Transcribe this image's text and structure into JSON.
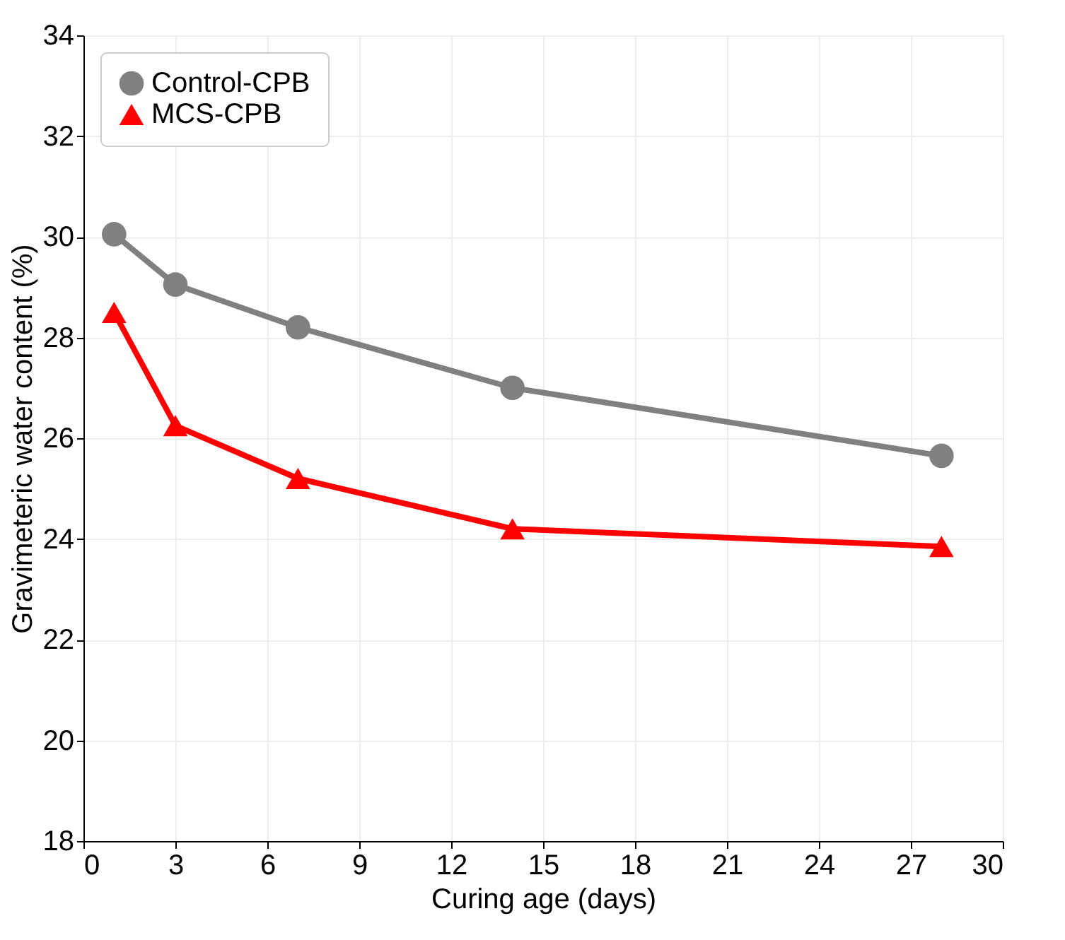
{
  "chart_data": {
    "type": "line",
    "xlabel": "Curing age (days)",
    "ylabel": "Gravimeteric water content (%)",
    "x": [
      1,
      3,
      7,
      14,
      28
    ],
    "series": [
      {
        "name": "Control-CPB",
        "color": "#808080",
        "marker": "circle",
        "values": [
          30.05,
          29.05,
          28.2,
          27.0,
          25.65
        ]
      },
      {
        "name": "MCS-CPB",
        "color": "#ff0000",
        "marker": "triangle",
        "values": [
          28.5,
          26.25,
          25.2,
          24.2,
          23.85
        ]
      }
    ],
    "xlim": [
      0,
      30
    ],
    "xticks": [
      0,
      3,
      6,
      9,
      12,
      15,
      18,
      21,
      24,
      27,
      30
    ],
    "ylim": [
      18,
      34
    ],
    "yticks": [
      18,
      20,
      22,
      24,
      26,
      28,
      30,
      32,
      34
    ],
    "grid": true,
    "legend": "top left",
    "line_style": "solid"
  }
}
